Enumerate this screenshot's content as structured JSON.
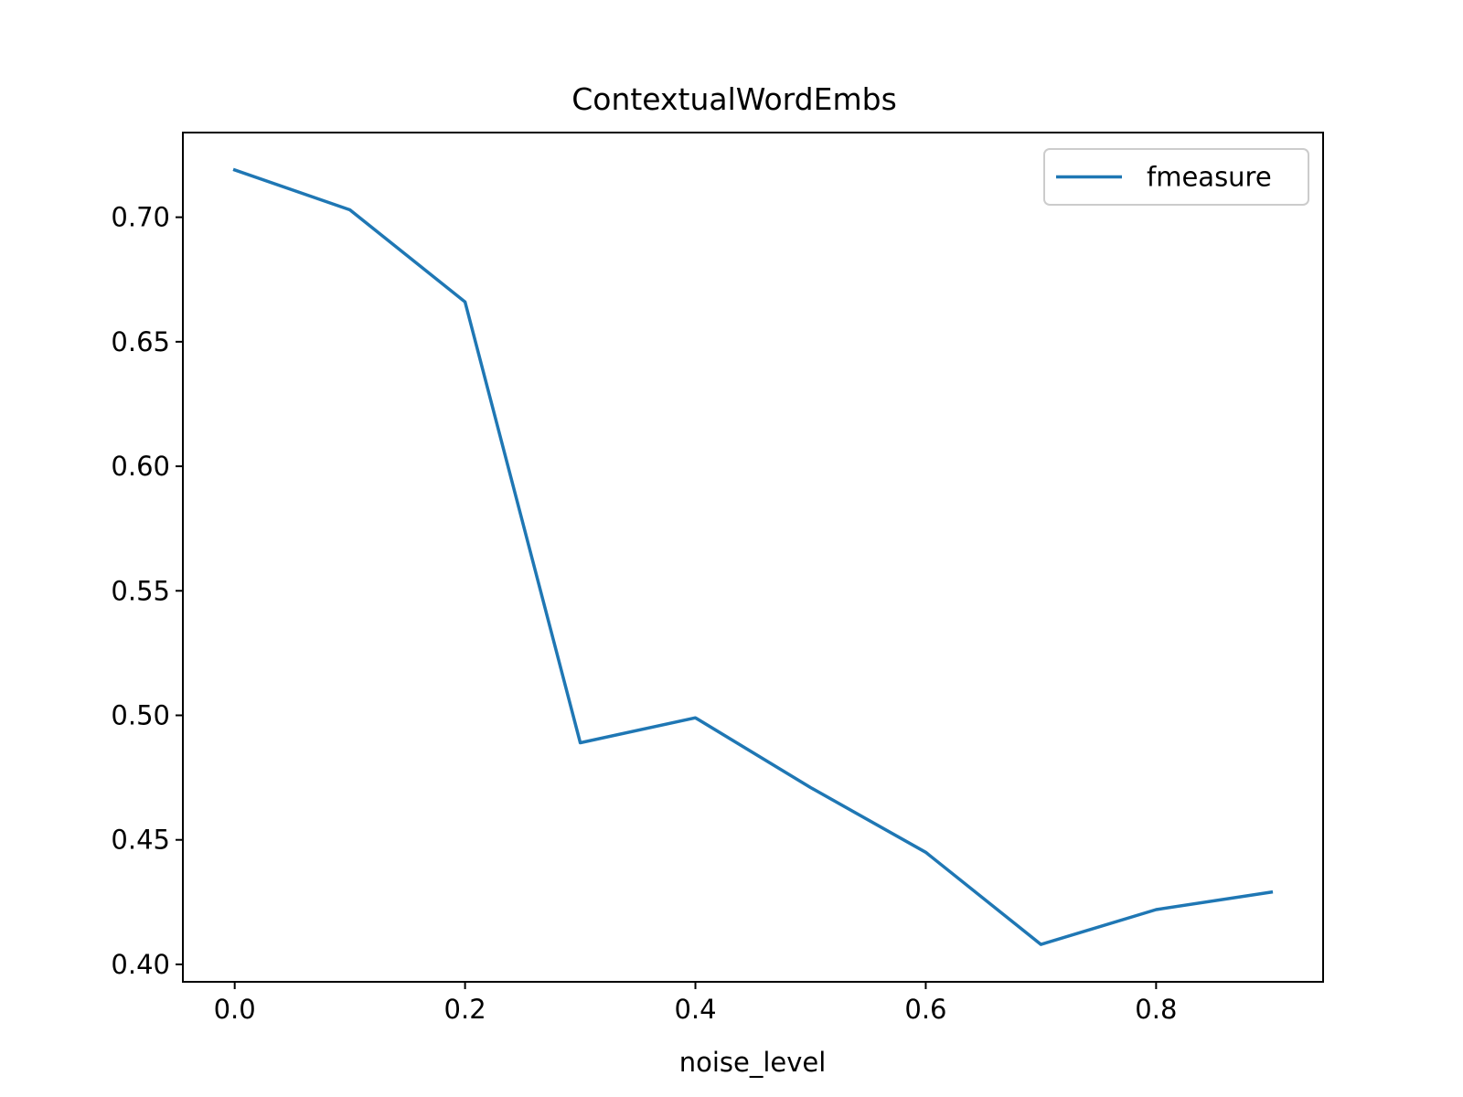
{
  "chart_data": {
    "type": "line",
    "title": "ContextualWordEmbs",
    "xlabel": "noise_level",
    "ylabel": "",
    "xlim": [
      -0.045,
      0.945
    ],
    "ylim": [
      0.393,
      0.734
    ],
    "xticks": [
      0.0,
      0.2,
      0.4,
      0.6,
      0.8
    ],
    "xtick_labels": [
      "0.0",
      "0.2",
      "0.4",
      "0.6",
      "0.8"
    ],
    "yticks": [
      0.4,
      0.45,
      0.5,
      0.55,
      0.6,
      0.65,
      0.7
    ],
    "ytick_labels": [
      "0.40",
      "0.45",
      "0.50",
      "0.55",
      "0.60",
      "0.65",
      "0.70"
    ],
    "grid": false,
    "legend_position": "top-right",
    "series": [
      {
        "name": "fmeasure",
        "color": "#1f77b4",
        "x": [
          0.0,
          0.1,
          0.2,
          0.3,
          0.4,
          0.5,
          0.6,
          0.7,
          0.8,
          0.9
        ],
        "values": [
          0.719,
          0.703,
          0.666,
          0.489,
          0.499,
          0.471,
          0.445,
          0.408,
          0.422,
          0.429
        ]
      }
    ]
  }
}
